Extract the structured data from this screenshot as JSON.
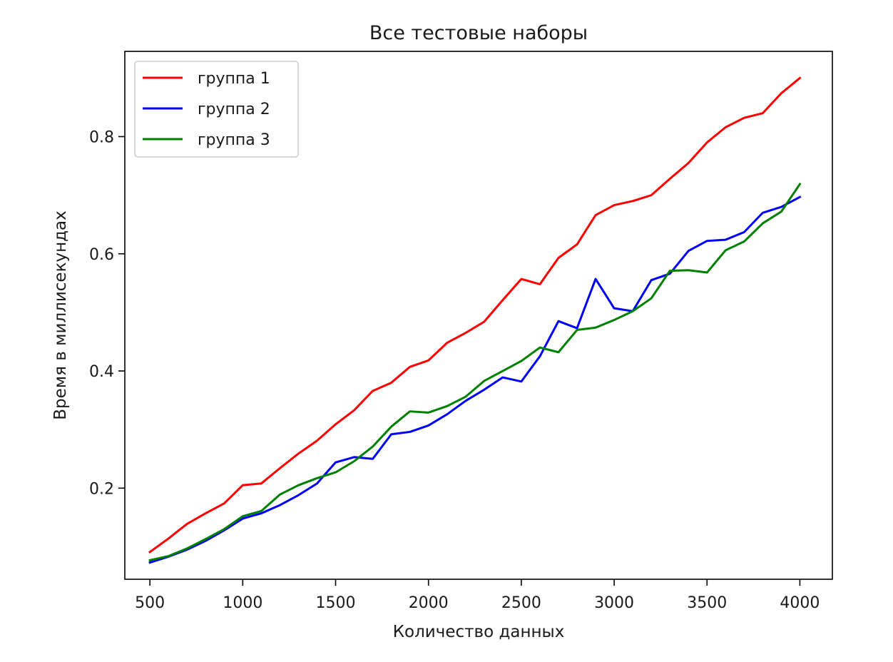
{
  "chart_data": {
    "type": "line",
    "title": "Все тестовые наборы",
    "xlabel": "Количество данных",
    "ylabel": "Время в миллисекундах",
    "xlim": [
      365,
      4175
    ],
    "ylim": [
      0.0445,
      0.9455
    ],
    "xticks": [
      500,
      1000,
      1500,
      2000,
      2500,
      3000,
      3500,
      4000
    ],
    "xtick_labels": [
      "500",
      "1000",
      "1500",
      "2000",
      "2500",
      "3000",
      "3500",
      "4000"
    ],
    "yticks": [
      0.2,
      0.4,
      0.6,
      0.8
    ],
    "ytick_labels": [
      "0.2",
      "0.4",
      "0.6",
      "0.8"
    ],
    "grid": false,
    "legend_position": "top-left",
    "x": [
      500,
      600,
      700,
      800,
      900,
      1000,
      1100,
      1200,
      1300,
      1400,
      1500,
      1600,
      1700,
      1800,
      1900,
      2000,
      2100,
      2200,
      2300,
      2400,
      2500,
      2600,
      2700,
      2800,
      2900,
      3000,
      3100,
      3200,
      3300,
      3400,
      3500,
      3600,
      3700,
      3800,
      3900,
      4000
    ],
    "series": [
      {
        "name": "группа 1",
        "color": "#ff0000",
        "values": [
          0.091,
          0.114,
          0.139,
          0.157,
          0.174,
          0.205,
          0.208,
          0.234,
          0.259,
          0.281,
          0.309,
          0.333,
          0.366,
          0.38,
          0.407,
          0.418,
          0.448,
          0.465,
          0.484,
          0.521,
          0.557,
          0.548,
          0.593,
          0.616,
          0.666,
          0.683,
          0.69,
          0.7,
          0.728,
          0.755,
          0.79,
          0.816,
          0.832,
          0.84,
          0.874,
          0.9
        ]
      },
      {
        "name": "группа 2",
        "color": "#0000ff",
        "values": [
          0.073,
          0.083,
          0.095,
          0.11,
          0.128,
          0.148,
          0.157,
          0.171,
          0.188,
          0.208,
          0.244,
          0.253,
          0.25,
          0.292,
          0.296,
          0.307,
          0.326,
          0.349,
          0.368,
          0.389,
          0.382,
          0.425,
          0.485,
          0.473,
          0.557,
          0.507,
          0.502,
          0.555,
          0.566,
          0.605,
          0.622,
          0.624,
          0.637,
          0.67,
          0.68,
          0.697
        ]
      },
      {
        "name": "группа 3",
        "color": "#008000",
        "values": [
          0.077,
          0.084,
          0.097,
          0.113,
          0.13,
          0.152,
          0.161,
          0.189,
          0.205,
          0.217,
          0.227,
          0.246,
          0.271,
          0.305,
          0.331,
          0.329,
          0.34,
          0.356,
          0.383,
          0.4,
          0.417,
          0.44,
          0.432,
          0.47,
          0.474,
          0.487,
          0.502,
          0.524,
          0.571,
          0.572,
          0.568,
          0.606,
          0.621,
          0.652,
          0.672,
          0.719
        ]
      }
    ]
  }
}
